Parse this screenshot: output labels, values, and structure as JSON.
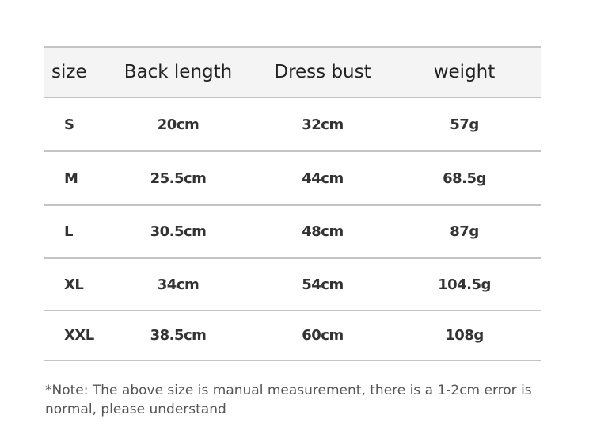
{
  "table": {
    "headers": [
      "size",
      "Back length",
      "Dress bust",
      "weight"
    ],
    "rows": [
      [
        "S",
        "20cm",
        "32cm",
        "57g"
      ],
      [
        "M",
        "25.5cm",
        "44cm",
        "68.5g"
      ],
      [
        "L",
        "30.5cm",
        "48cm",
        "87g"
      ],
      [
        "XL",
        "34cm",
        "54cm",
        "104.5g"
      ],
      [
        "XXL",
        "38.5cm",
        "60cm",
        "108g"
      ]
    ]
  },
  "note": "*Note: The above size is manual measurement, there is a 1-2cm error is normal, please understand",
  "colors": {
    "header_bg": "#f4f4f4",
    "rule": "#c4c4c4"
  }
}
